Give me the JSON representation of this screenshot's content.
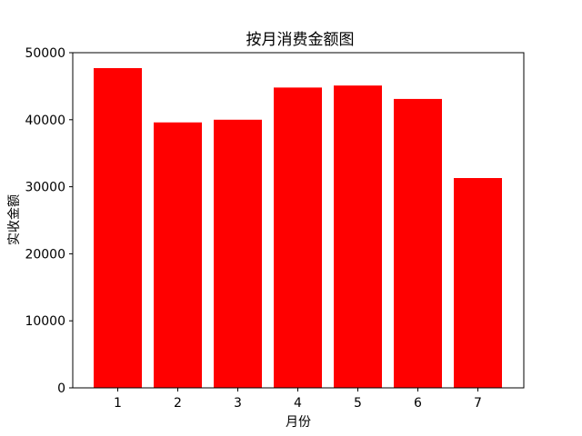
{
  "chart_data": {
    "type": "bar",
    "title": "按月消费金额图",
    "xlabel": "月份",
    "ylabel": "实收金额",
    "categories": [
      "1",
      "2",
      "3",
      "4",
      "5",
      "6",
      "7"
    ],
    "values": [
      47700,
      39600,
      40000,
      44800,
      45100,
      43100,
      31300
    ],
    "ylim": [
      0,
      50000
    ],
    "yticks": [
      "0",
      "10000",
      "20000",
      "30000",
      "40000",
      "50000"
    ],
    "bar_color": "#ff0000",
    "grid": false,
    "legend": "none"
  }
}
